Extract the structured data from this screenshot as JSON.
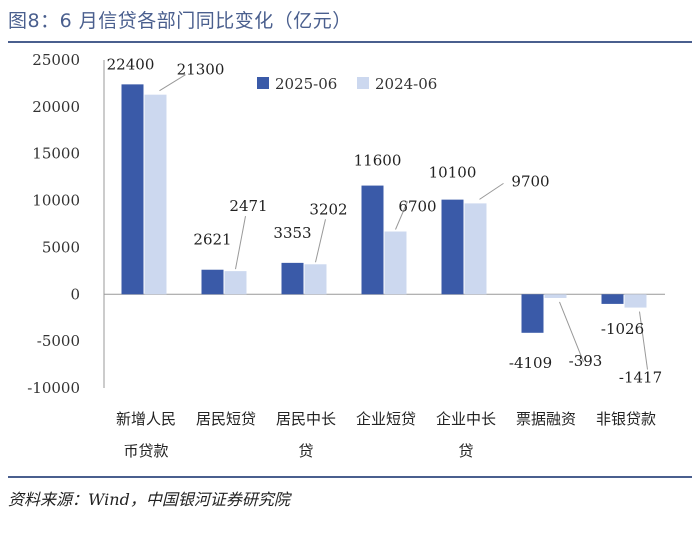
{
  "title": "图8：6 月信贷各部门同比变化（亿元）",
  "source": "资料来源：Wind，中国银河证券研究院",
  "chart_data": {
    "type": "bar",
    "categories": [
      [
        "新增人民",
        "币贷款"
      ],
      [
        "居民短贷"
      ],
      [
        "居民中长",
        "贷"
      ],
      [
        "企业短贷"
      ],
      [
        "企业中长",
        "贷"
      ],
      [
        "票据融资"
      ],
      [
        "非银贷款"
      ]
    ],
    "series": [
      {
        "name": "2025-06",
        "color": "#3a5aa8",
        "values": [
          22400,
          2621,
          3353,
          11600,
          10100,
          -4109,
          -1026
        ]
      },
      {
        "name": "2024-06",
        "color": "#ccd8ef",
        "values": [
          21300,
          2471,
          3202,
          6700,
          9700,
          -393,
          -1417
        ]
      }
    ],
    "ylim": [
      -10000,
      25000
    ],
    "yticks": [
      25000,
      20000,
      15000,
      10000,
      5000,
      0,
      -5000,
      -10000
    ],
    "legend_position": "top",
    "grid": false
  }
}
